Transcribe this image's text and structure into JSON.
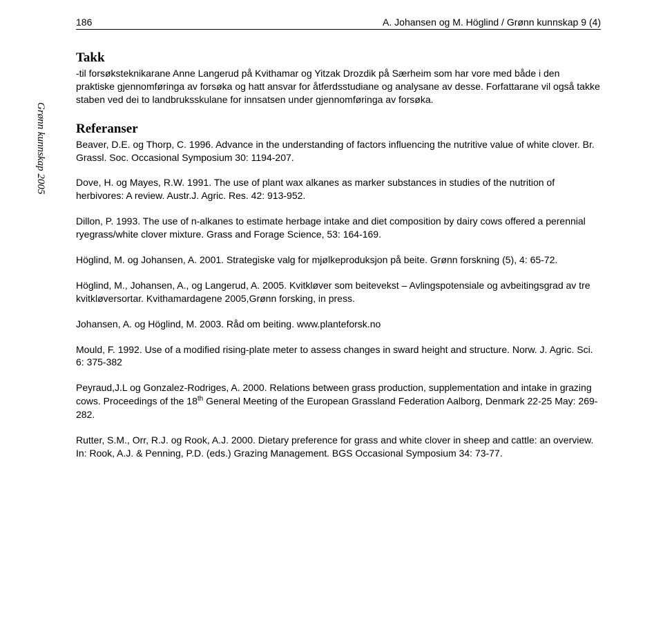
{
  "header": {
    "page_number": "186",
    "running_title": "A. Johansen og M. Höglind / Grønn kunnskap 9 (4)"
  },
  "sidebar": {
    "label": "Grønn kunnskap 2005"
  },
  "takk": {
    "heading": "Takk",
    "text": "-til forsøksteknikarane Anne Langerud på Kvithamar og Yitzak Drozdik på Særheim som har vore med både i den praktiske gjennomføringa av forsøka og hatt ansvar for åtferdsstudiane og analysane av desse. Forfattarane vil også takke staben ved dei to landbruksskulane for innsatsen under gjennomføringa av forsøka."
  },
  "references": {
    "heading": "Referanser",
    "items": [
      "Beaver, D.E. og Thorp, C. 1996. Advance in the understanding of factors influencing the nutritive value of white clover. Br. Grassl. Soc. Occasional Symposium 30: 1194-207.",
      "Dove, H. og Mayes, R.W. 1991. The use of plant wax alkanes as marker substances in studies of the nutrition of herbivores: A review. Austr.J. Agric. Res. 42: 913-952.",
      "Dillon, P. 1993. The use of n-alkanes to estimate herbage intake and diet composition by dairy cows offered a perennial ryegrass/white clover mixture. Grass and Forage Science, 53: 164-169.",
      "Höglind, M. og Johansen, A. 2001. Strategiske valg for mjølkeproduksjon på beite. Grønn forskning (5), 4: 65-72.",
      "Höglind, M., Johansen, A., og Langerud, A. 2005. Kvitkløver som beitevekst – Avlingspotensiale og avbeitingsgrad av tre kvitkløversortar. Kvithamardagene 2005,Grønn forsking, in press.",
      "Johansen, A. og Höglind, M. 2003. Råd om beiting. www.planteforsk.no",
      "Mould, F. 1992. Use of a modified rising-plate meter to assess changes in sward height and structure. Norw. J. Agric. Sci. 6: 375-382",
      "Peyraud,J.L og Gonzalez-Rodriges, A. 2000. Relations between grass production, supplementation and intake in grazing cows. Proceedings of the 18th General Meeting of the European Grassland Federation Aalborg, Denmark 22-25 May: 269-282.",
      "Rutter, S.M., Orr, R.J. og Rook, A.J. 2000. Dietary preference for grass and white clover in sheep and cattle: an overview. In: Rook, A.J. & Penning, P.D. (eds.) Grazing Management. BGS Occasional Symposium 34: 73-77."
    ]
  }
}
